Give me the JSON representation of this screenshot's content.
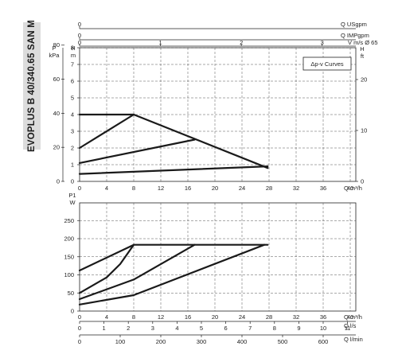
{
  "side_title": "EVOPLUS B 40/340.65 SAN M",
  "chart_data": [
    {
      "type": "line",
      "title": "",
      "annotation": "Δp-v Curves",
      "x": {
        "label": "Q",
        "unit": "m³/h",
        "range": [
          0,
          44
        ],
        "ticks": [
          0,
          4,
          8,
          12,
          16,
          20,
          24,
          28,
          32,
          36,
          40
        ]
      },
      "y_left_head": {
        "label": "H",
        "unit": "m",
        "range": [
          0,
          8.7
        ],
        "ticks": [
          0,
          1,
          2,
          3,
          4,
          5,
          6,
          7,
          8
        ]
      },
      "y_left_pressure": {
        "label": "P",
        "unit": "kPa",
        "ticks": [
          0,
          20,
          40,
          60,
          80
        ]
      },
      "y_right_head": {
        "label": "H",
        "unit": "ft",
        "ticks": [
          0,
          10,
          20
        ]
      },
      "top_axes": [
        {
          "label": "Q",
          "unit": "USgpm",
          "ticks": [
            0,
            20,
            40,
            60,
            80,
            100,
            120,
            140,
            160
          ]
        },
        {
          "label": "Q",
          "unit": "IMPgpm",
          "ticks": [
            0,
            20,
            40,
            60,
            80,
            100,
            120
          ]
        },
        {
          "label": "V",
          "unit": "m/s Ø 65",
          "ticks": [
            0,
            1,
            2,
            3,
            4,
            5
          ]
        }
      ],
      "series": [
        {
          "values": [
            [
              0,
              4.0
            ],
            [
              8,
              4.0
            ],
            [
              27.8,
              0.8
            ]
          ]
        },
        {
          "values": [
            [
              0,
              2.0
            ],
            [
              8,
              4.0
            ]
          ]
        },
        {
          "values": [
            [
              0,
              1.1
            ],
            [
              17,
              2.5
            ]
          ]
        },
        {
          "values": [
            [
              0,
              0.45
            ],
            [
              27.8,
              0.9
            ]
          ]
        }
      ],
      "grid": true
    },
    {
      "type": "line",
      "title": "",
      "x": {
        "label": "Q",
        "unit": "m³/h",
        "range": [
          0,
          44
        ],
        "ticks": [
          0,
          4,
          8,
          12,
          16,
          20,
          24,
          28,
          32,
          36,
          40
        ]
      },
      "y": {
        "label": "P1",
        "unit": "W",
        "range": [
          0,
          260
        ],
        "ticks": [
          0,
          50,
          100,
          150,
          200,
          250
        ]
      },
      "bottom_axes": [
        {
          "label": "Q",
          "unit": "l/s",
          "ticks": [
            0,
            1,
            2,
            3,
            4,
            5,
            6,
            7,
            8,
            9,
            10,
            11
          ]
        },
        {
          "label": "Q",
          "unit": "l/min",
          "ticks": [
            0,
            100,
            200,
            300,
            400,
            500,
            600
          ]
        }
      ],
      "series": [
        {
          "values": [
            [
              0,
              112
            ],
            [
              8,
              183
            ],
            [
              27.8,
              183
            ]
          ]
        },
        {
          "values": [
            [
              0,
              50
            ],
            [
              4,
              93
            ],
            [
              6,
              130
            ],
            [
              8,
              183
            ]
          ]
        },
        {
          "values": [
            [
              0,
              33
            ],
            [
              8,
              87
            ],
            [
              17,
              183
            ]
          ]
        },
        {
          "values": [
            [
              0,
              18
            ],
            [
              8,
              44
            ],
            [
              27.3,
              183
            ]
          ]
        }
      ],
      "grid": true
    }
  ]
}
